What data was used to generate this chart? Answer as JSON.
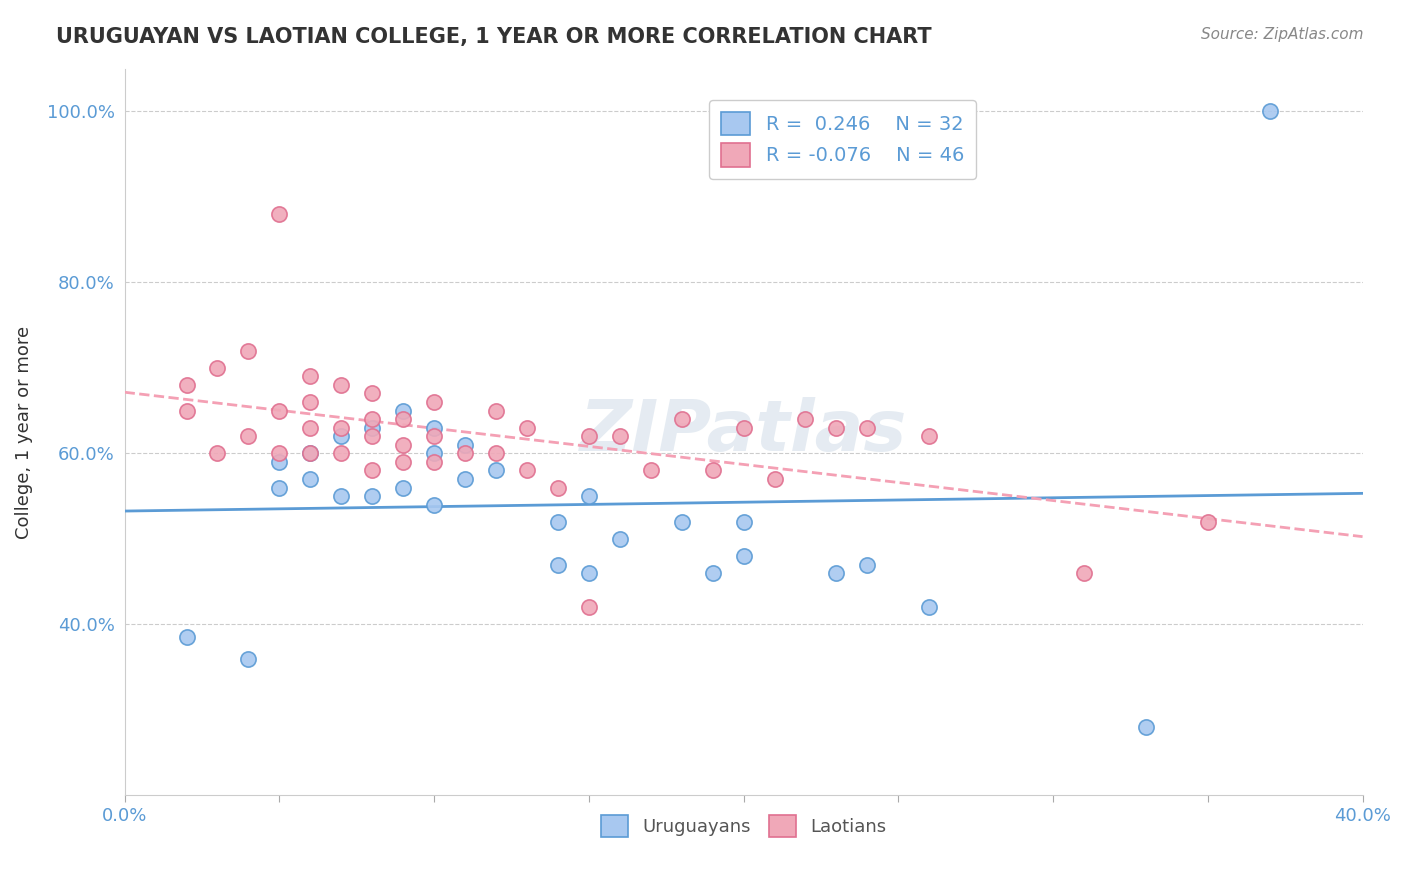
{
  "title": "URUGUAYAN VS LAOTIAN COLLEGE, 1 YEAR OR MORE CORRELATION CHART",
  "source_text": "Source: ZipAtlas.com",
  "xlabel": "",
  "ylabel": "College, 1 year or more",
  "xlim": [
    0.0,
    0.4
  ],
  "ylim": [
    0.2,
    1.05
  ],
  "xticks": [
    0.0,
    0.05,
    0.1,
    0.15,
    0.2,
    0.25,
    0.3,
    0.35,
    0.4
  ],
  "xtick_labels": [
    "0.0%",
    "",
    "",
    "",
    "",
    "",
    "",
    "",
    "40.0%"
  ],
  "yticks": [
    0.4,
    0.6,
    0.8,
    1.0
  ],
  "ytick_labels": [
    "40.0%",
    "60.0%",
    "80.0%",
    "100.0%"
  ],
  "legend_r1": "R =  0.246",
  "legend_n1": "N = 32",
  "legend_r2": "R = -0.076",
  "legend_n2": "N = 46",
  "uruguayan_color": "#a8c8f0",
  "laotian_color": "#f0a8b8",
  "line_uruguayan_color": "#5b9bd5",
  "line_laotian_color": "#f4a0b4",
  "watermark": "ZIPatlas",
  "uruguayan_x": [
    0.02,
    0.04,
    0.05,
    0.05,
    0.06,
    0.06,
    0.07,
    0.07,
    0.08,
    0.08,
    0.09,
    0.09,
    0.1,
    0.1,
    0.1,
    0.11,
    0.11,
    0.12,
    0.14,
    0.14,
    0.15,
    0.15,
    0.16,
    0.18,
    0.19,
    0.2,
    0.2,
    0.23,
    0.24,
    0.26,
    0.33,
    0.37
  ],
  "uruguayan_y": [
    0.385,
    0.36,
    0.56,
    0.59,
    0.57,
    0.6,
    0.55,
    0.62,
    0.55,
    0.63,
    0.56,
    0.65,
    0.54,
    0.6,
    0.63,
    0.57,
    0.61,
    0.58,
    0.47,
    0.52,
    0.55,
    0.46,
    0.5,
    0.52,
    0.46,
    0.52,
    0.48,
    0.46,
    0.47,
    0.42,
    0.28,
    1.0
  ],
  "laotian_x": [
    0.02,
    0.02,
    0.03,
    0.03,
    0.04,
    0.04,
    0.05,
    0.05,
    0.05,
    0.06,
    0.06,
    0.06,
    0.06,
    0.07,
    0.07,
    0.07,
    0.08,
    0.08,
    0.08,
    0.08,
    0.09,
    0.09,
    0.09,
    0.1,
    0.1,
    0.1,
    0.11,
    0.12,
    0.12,
    0.13,
    0.13,
    0.14,
    0.15,
    0.15,
    0.16,
    0.17,
    0.18,
    0.19,
    0.2,
    0.21,
    0.22,
    0.23,
    0.24,
    0.26,
    0.31,
    0.35
  ],
  "laotian_y": [
    0.65,
    0.68,
    0.6,
    0.7,
    0.62,
    0.72,
    0.6,
    0.65,
    0.88,
    0.6,
    0.63,
    0.66,
    0.69,
    0.6,
    0.63,
    0.68,
    0.58,
    0.62,
    0.64,
    0.67,
    0.59,
    0.61,
    0.64,
    0.59,
    0.62,
    0.66,
    0.6,
    0.65,
    0.6,
    0.58,
    0.63,
    0.56,
    0.62,
    0.42,
    0.62,
    0.58,
    0.64,
    0.58,
    0.63,
    0.57,
    0.64,
    0.63,
    0.63,
    0.62,
    0.46,
    0.52
  ]
}
